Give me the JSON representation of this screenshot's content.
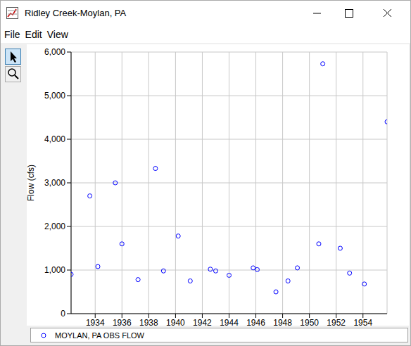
{
  "window": {
    "title": "Ridley Creek-Moylan, PA",
    "menu": [
      "File",
      "Edit",
      "View"
    ]
  },
  "chart_data": {
    "type": "scatter",
    "y_label": "Flow (cfs)",
    "x": [
      1932.2,
      1933.6,
      1934.2,
      1935.5,
      1936.0,
      1937.2,
      1938.5,
      1939.1,
      1940.2,
      1941.1,
      1942.6,
      1943.0,
      1944.0,
      1945.8,
      1946.1,
      1947.5,
      1948.4,
      1949.1,
      1950.7,
      1951.0,
      1952.3,
      1953.0,
      1954.1,
      1955.8
    ],
    "series": [
      {
        "name": "MOYLAN, PA OBS FLOW",
        "color": "#0000ff",
        "marker": "circle",
        "values": [
          900,
          2700,
          1080,
          3000,
          1600,
          780,
          3330,
          980,
          1780,
          750,
          1020,
          980,
          880,
          1050,
          1010,
          500,
          750,
          1050,
          1600,
          5730,
          1500,
          930,
          680,
          4400
        ]
      }
    ],
    "xlim": [
      1932.2,
      1955.8
    ],
    "xticks": [
      1934,
      1936,
      1938,
      1940,
      1942,
      1944,
      1946,
      1948,
      1950,
      1952,
      1954
    ],
    "ylim": [
      0,
      6000
    ],
    "yticks": [
      0,
      {
        "value": 1000,
        "label": "1,000"
      },
      {
        "value": 2000,
        "label": "2,000"
      },
      {
        "value": 3000,
        "label": "3,000"
      },
      {
        "value": 4000,
        "label": "4,000"
      },
      {
        "value": 5000,
        "label": "5,000"
      },
      {
        "value": 6000,
        "label": "6,000"
      }
    ],
    "grid": true,
    "legend": "bottom"
  }
}
